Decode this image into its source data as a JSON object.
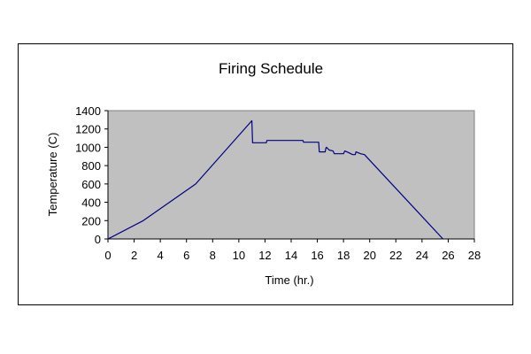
{
  "chart_data": {
    "type": "line",
    "title": "Firing Schedule",
    "xlabel": "Time (hr.)",
    "ylabel": "Temperature (C)",
    "xlim": [
      0,
      28
    ],
    "ylim": [
      0,
      1400
    ],
    "x_ticks": [
      0,
      2,
      4,
      6,
      8,
      10,
      12,
      14,
      16,
      18,
      20,
      22,
      24,
      26,
      28
    ],
    "y_ticks": [
      0,
      200,
      400,
      600,
      800,
      1000,
      1200,
      1400
    ],
    "grid": false,
    "legend": "none",
    "plot_background": "#c0c0c0",
    "series": [
      {
        "color": "#000080",
        "x": [
          0,
          2.7,
          6.7,
          11.0,
          11.05,
          12.1,
          12.15,
          14.9,
          14.95,
          16.1,
          16.15,
          16.6,
          16.65,
          16.7,
          16.9,
          17.2,
          17.3,
          17.6,
          18.0,
          18.1,
          18.4,
          18.7,
          18.9,
          18.95,
          19.3,
          19.6,
          25.6
        ],
        "y": [
          0,
          200,
          600,
          1290,
          1050,
          1050,
          1075,
          1075,
          1055,
          1055,
          950,
          950,
          990,
          1000,
          970,
          960,
          930,
          930,
          930,
          960,
          940,
          920,
          920,
          950,
          930,
          920,
          0
        ]
      }
    ]
  }
}
